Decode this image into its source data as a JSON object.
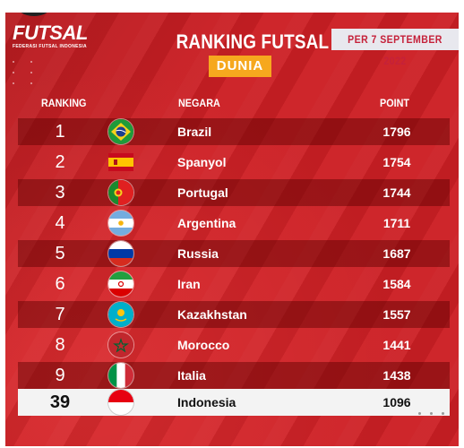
{
  "brand": {
    "name": "FUTSAL",
    "subtitle": "FEDERASI FUTSAL INDONESIA"
  },
  "header": {
    "title": "RANKING FUTSAL",
    "subtitle": "DUNIA",
    "date": "PER 7 SEPTEMBER 2022"
  },
  "columns": {
    "ranking": "RANKING",
    "country": "NEGARA",
    "point": "POINT"
  },
  "rows": [
    {
      "rank": "1",
      "country": "Brazil",
      "point": "1796",
      "flag": "brazil-flag"
    },
    {
      "rank": "2",
      "country": "Spanyol",
      "point": "1754",
      "flag": "spain-flag"
    },
    {
      "rank": "3",
      "country": "Portugal",
      "point": "1744",
      "flag": "portugal-flag"
    },
    {
      "rank": "4",
      "country": "Argentina",
      "point": "1711",
      "flag": "argentina-flag"
    },
    {
      "rank": "5",
      "country": "Russia",
      "point": "1687",
      "flag": "russia-flag"
    },
    {
      "rank": "6",
      "country": "Iran",
      "point": "1584",
      "flag": "iran-flag"
    },
    {
      "rank": "7",
      "country": "Kazakhstan",
      "point": "1557",
      "flag": "kazakhstan-flag"
    },
    {
      "rank": "8",
      "country": "Morocco",
      "point": "1441",
      "flag": "morocco-flag"
    },
    {
      "rank": "9",
      "country": "Italia",
      "point": "1438",
      "flag": "italy-flag"
    },
    {
      "rank": "39",
      "country": "Indonesia",
      "point": "1096",
      "flag": "indonesia-flag"
    }
  ],
  "colors": {
    "background": "#cc1f24",
    "accent": "#f6a81e",
    "date_text": "#c5213a",
    "highlight_row": "#f3f3f3"
  }
}
